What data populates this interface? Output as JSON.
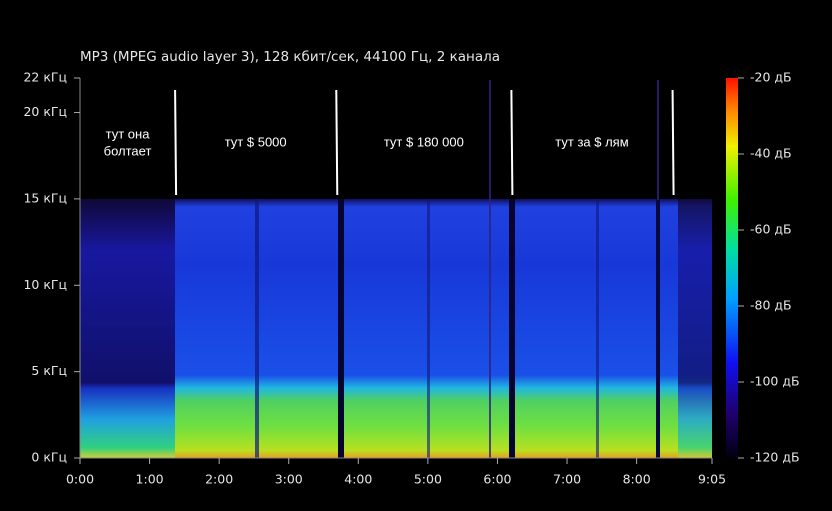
{
  "chart_data": {
    "type": "spectrogram",
    "title": "MP3 (MPEG audio layer 3), 128 кбит/сек, 44100 Гц, 2 канала",
    "xlim": [
      0,
      545
    ],
    "xticks": [
      {
        "value": 0,
        "label": "0:00"
      },
      {
        "value": 60,
        "label": "1:00"
      },
      {
        "value": 120,
        "label": "2:00"
      },
      {
        "value": 180,
        "label": "3:00"
      },
      {
        "value": 240,
        "label": "4:00"
      },
      {
        "value": 300,
        "label": "5:00"
      },
      {
        "value": 360,
        "label": "6:00"
      },
      {
        "value": 420,
        "label": "7:00"
      },
      {
        "value": 480,
        "label": "8:00"
      },
      {
        "value": 545,
        "label": "9:05"
      }
    ],
    "ylim": [
      0,
      22
    ],
    "yticks": [
      {
        "value": 0,
        "label": "0 кГц"
      },
      {
        "value": 5,
        "label": "5 кГц"
      },
      {
        "value": 10,
        "label": "10 кГц"
      },
      {
        "value": 15,
        "label": "15 кГц"
      },
      {
        "value": 20,
        "label": "20 кГц"
      },
      {
        "value": 22,
        "label": "22 кГц"
      }
    ],
    "colorbar_lim": [
      -120,
      -20
    ],
    "colorbar_ticks": [
      {
        "value": -20,
        "label": "-20 дБ"
      },
      {
        "value": -40,
        "label": "-40 дБ"
      },
      {
        "value": -60,
        "label": "-60 дБ"
      },
      {
        "value": -80,
        "label": "-80 дБ"
      },
      {
        "value": -100,
        "label": "-100 дБ"
      },
      {
        "value": -120,
        "label": "-120 дБ"
      }
    ],
    "markers": [
      82,
      221,
      372,
      511
    ],
    "annotations": [
      [
        "тут она",
        "болтает"
      ],
      [
        "тут $ 5000"
      ],
      [
        "тут $ 180 000"
      ],
      [
        "тут за $  лям"
      ]
    ]
  }
}
